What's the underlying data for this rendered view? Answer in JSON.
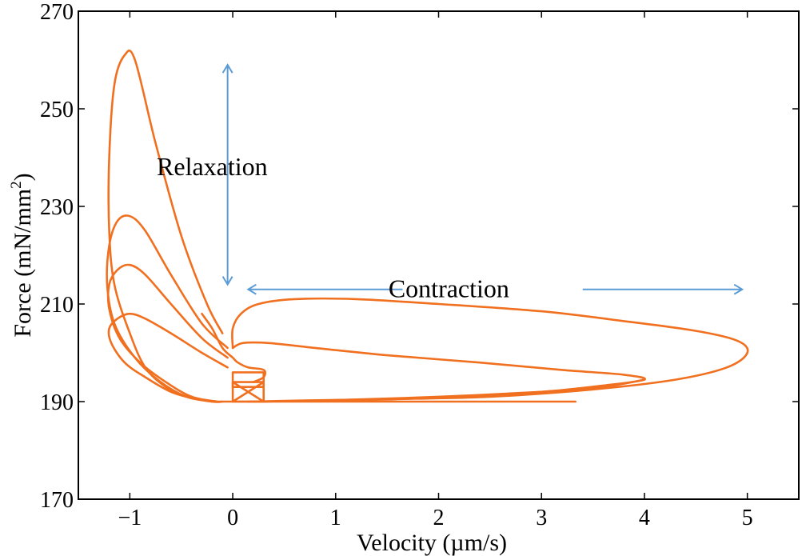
{
  "chart_data": {
    "type": "line",
    "title": "",
    "xlabel": "Velocity (µm/s)",
    "ylabel": "Force (mN/mm²)",
    "ylabel_main": "Force (mN/mm",
    "ylabel_sup": "2",
    "ylabel_close": ")",
    "xlim": [
      -1.5,
      5.5
    ],
    "ylim": [
      170,
      270
    ],
    "xticks": [
      {
        "value": -1,
        "label": "−1"
      },
      {
        "value": 0,
        "label": "0"
      },
      {
        "value": 1,
        "label": "1"
      },
      {
        "value": 2,
        "label": "2"
      },
      {
        "value": 3,
        "label": "3"
      },
      {
        "value": 4,
        "label": "4"
      },
      {
        "value": 5,
        "label": "5"
      }
    ],
    "yticks": [
      {
        "value": 170,
        "label": "170"
      },
      {
        "value": 190,
        "label": "190"
      },
      {
        "value": 210,
        "label": "210"
      },
      {
        "value": 230,
        "label": "230"
      },
      {
        "value": 250,
        "label": "250"
      },
      {
        "value": 270,
        "label": "270"
      }
    ],
    "grid": false,
    "series_color": "#f07020",
    "annotation_color": "#5b9bd5",
    "series": [
      {
        "name": "relaxation-loop-large",
        "points": [
          [
            -0.1,
            204
          ],
          [
            -0.25,
            210
          ],
          [
            -0.5,
            224
          ],
          [
            -0.75,
            243
          ],
          [
            -0.95,
            260
          ],
          [
            -1.05,
            261
          ],
          [
            -1.15,
            255
          ],
          [
            -1.2,
            240
          ],
          [
            -1.2,
            225
          ],
          [
            -1.15,
            214
          ],
          [
            -1.0,
            204
          ],
          [
            -0.85,
            197
          ],
          [
            -0.65,
            193
          ],
          [
            -0.45,
            191
          ],
          [
            -0.2,
            190
          ],
          [
            -0.1,
            190
          ]
        ]
      },
      {
        "name": "relaxation-loop-228",
        "points": [
          [
            -0.05,
            201
          ],
          [
            -0.3,
            206
          ],
          [
            -0.6,
            216
          ],
          [
            -0.85,
            225
          ],
          [
            -1.0,
            228
          ],
          [
            -1.12,
            227
          ],
          [
            -1.2,
            222
          ],
          [
            -1.22,
            214
          ],
          [
            -1.15,
            206
          ],
          [
            -0.95,
            199
          ],
          [
            -0.7,
            194
          ],
          [
            -0.45,
            191
          ],
          [
            -0.2,
            190
          ]
        ]
      },
      {
        "name": "relaxation-loop-218",
        "points": [
          [
            -0.05,
            199
          ],
          [
            -0.3,
            203
          ],
          [
            -0.6,
            210
          ],
          [
            -0.85,
            216
          ],
          [
            -1.0,
            218
          ],
          [
            -1.12,
            217
          ],
          [
            -1.2,
            214
          ],
          [
            -1.2,
            209
          ],
          [
            -1.1,
            203
          ],
          [
            -0.9,
            198
          ],
          [
            -0.65,
            194
          ],
          [
            -0.4,
            191
          ],
          [
            -0.15,
            190
          ]
        ]
      },
      {
        "name": "relaxation-loop-208",
        "points": [
          [
            -0.05,
            197
          ],
          [
            -0.3,
            200
          ],
          [
            -0.6,
            204
          ],
          [
            -0.85,
            207
          ],
          [
            -1.0,
            208
          ],
          [
            -1.12,
            207
          ],
          [
            -1.2,
            205
          ],
          [
            -1.18,
            202
          ],
          [
            -1.05,
            198
          ],
          [
            -0.85,
            195
          ],
          [
            -0.6,
            192
          ],
          [
            -0.35,
            190.5
          ],
          [
            -0.15,
            190
          ]
        ]
      },
      {
        "name": "contraction-loop-large",
        "points": [
          [
            0.15,
            190
          ],
          [
            0.6,
            190.2
          ],
          [
            1.5,
            190.5
          ],
          [
            2.5,
            191
          ],
          [
            3.5,
            192.5
          ],
          [
            4.3,
            194.5
          ],
          [
            4.8,
            197
          ],
          [
            5.0,
            200
          ],
          [
            4.9,
            202.5
          ],
          [
            4.5,
            204.5
          ],
          [
            3.8,
            206.5
          ],
          [
            3.0,
            208.5
          ],
          [
            2.0,
            210
          ],
          [
            1.2,
            211
          ],
          [
            0.6,
            211
          ],
          [
            0.25,
            210
          ],
          [
            0.08,
            208
          ],
          [
            0.0,
            205
          ],
          [
            0.0,
            201
          ]
        ]
      },
      {
        "name": "contraction-loop-medium",
        "points": [
          [
            0.2,
            190
          ],
          [
            1.0,
            190.2
          ],
          [
            2.0,
            190.8
          ],
          [
            3.0,
            192
          ],
          [
            3.6,
            193.3
          ],
          [
            4.0,
            194.5
          ],
          [
            3.8,
            195.5
          ],
          [
            3.2,
            196.5
          ],
          [
            2.4,
            198
          ],
          [
            1.5,
            199.5
          ],
          [
            0.8,
            201
          ],
          [
            0.35,
            202
          ],
          [
            0.1,
            202
          ],
          [
            0.0,
            201
          ]
        ]
      },
      {
        "name": "contraction-return-lower",
        "points": [
          [
            4.0,
            194.5
          ],
          [
            3.6,
            193
          ],
          [
            3.0,
            192
          ],
          [
            2.0,
            191
          ],
          [
            1.0,
            190.3
          ],
          [
            0.3,
            190
          ]
        ]
      },
      {
        "name": "baseline",
        "points": [
          [
            -0.2,
            190
          ],
          [
            1.0,
            190
          ],
          [
            2.0,
            190
          ],
          [
            3.0,
            190
          ],
          [
            3.33,
            190
          ]
        ]
      },
      {
        "name": "pinch-transition",
        "points": [
          [
            -0.3,
            208
          ],
          [
            -0.2,
            205
          ],
          [
            -0.1,
            201
          ],
          [
            0.0,
            199
          ],
          [
            0.05,
            198
          ],
          [
            0.15,
            197
          ],
          [
            0.3,
            196.5
          ],
          [
            0.3,
            195
          ],
          [
            0.2,
            194
          ]
        ]
      },
      {
        "name": "center-box",
        "points": [
          [
            0.0,
            190
          ],
          [
            0.0,
            196
          ],
          [
            0.3,
            196
          ],
          [
            0.3,
            190
          ],
          [
            0.0,
            190
          ],
          [
            0.3,
            194
          ],
          [
            0.3,
            190
          ],
          [
            0.0,
            194
          ],
          [
            0.0,
            190
          ]
        ]
      },
      {
        "name": "center-box-inner",
        "points": [
          [
            0.0,
            194
          ],
          [
            0.3,
            194
          ],
          [
            0.3,
            193
          ],
          [
            0.0,
            193
          ],
          [
            0.0,
            194
          ]
        ]
      }
    ],
    "annotations": [
      {
        "text": "Relaxation",
        "x": -0.2,
        "y": 238
      },
      {
        "text": "Contraction",
        "x": 2.1,
        "y": 213
      }
    ],
    "arrows": [
      {
        "name": "relaxation-arrow",
        "from": [
          -0.05,
          259
        ],
        "to": [
          -0.05,
          214
        ],
        "both_ends": true
      },
      {
        "name": "contraction-left-arrow",
        "from": [
          1.65,
          213
        ],
        "to": [
          0.15,
          213
        ],
        "both_ends": false
      },
      {
        "name": "contraction-right-arrow",
        "from": [
          3.4,
          213
        ],
        "to": [
          4.95,
          213
        ],
        "both_ends": false
      }
    ]
  }
}
